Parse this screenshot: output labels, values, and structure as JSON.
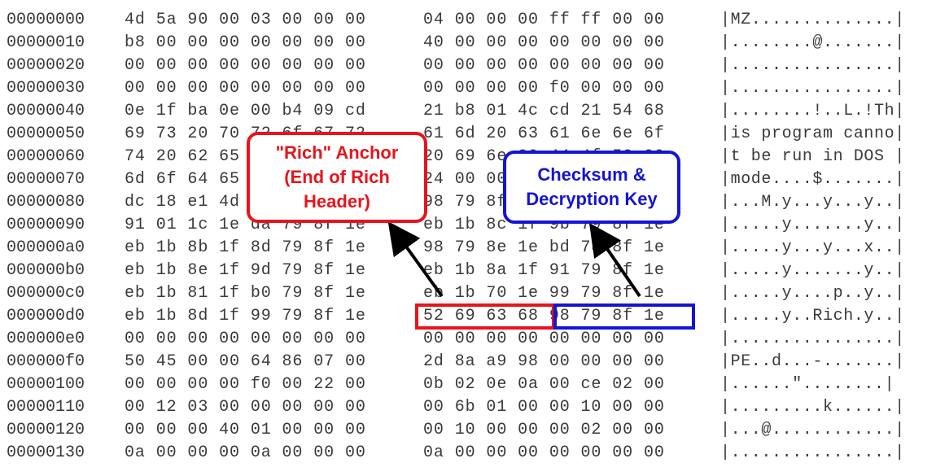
{
  "rows": [
    {
      "offset": "00000000",
      "hex1": "4d 5a 90 00 03 00 00 00",
      "hex2": "04 00 00 00 ff ff 00 00",
      "ascii": "|MZ..............|"
    },
    {
      "offset": "00000010",
      "hex1": "b8 00 00 00 00 00 00 00",
      "hex2": "40 00 00 00 00 00 00 00",
      "ascii": "|........@.......|"
    },
    {
      "offset": "00000020",
      "hex1": "00 00 00 00 00 00 00 00",
      "hex2": "00 00 00 00 00 00 00 00",
      "ascii": "|................|"
    },
    {
      "offset": "00000030",
      "hex1": "00 00 00 00 00 00 00 00",
      "hex2": "00 00 00 00 f0 00 00 00",
      "ascii": "|................|"
    },
    {
      "offset": "00000040",
      "hex1": "0e 1f ba 0e 00 b4 09 cd",
      "hex2": "21 b8 01 4c cd 21 54 68",
      "ascii": "|........!..L.!Th|"
    },
    {
      "offset": "00000050",
      "hex1": "69 73 20 70 72 6f 67 72",
      "hex2": "61 6d 20 63 61 6e 6e 6f",
      "ascii": "|is program canno|"
    },
    {
      "offset": "00000060",
      "hex1": "74 20 62 65 20 72 75 6e",
      "hex2": "20 69 6e 20 44 4f 53 20",
      "ascii": "|t be run in DOS |"
    },
    {
      "offset": "00000070",
      "hex1": "6d 6f 64 65 2e 0d 0d 0a",
      "hex2": "24 00 00 00 00 00 00 00",
      "ascii": "|mode....$.......|"
    },
    {
      "offset": "00000080",
      "hex1": "dc 18 e1 4d 98 79 8f 1e",
      "hex2": "98 79 8f 1e 98 79 8f 1e",
      "ascii": "|...M.y...y...y..|"
    },
    {
      "offset": "00000090",
      "hex1": "91 01 1c 1e da 79 8f 1e",
      "hex2": "eb 1b 8c 1f 9b 79 8f 1e",
      "ascii": "|.....y.......y..|"
    },
    {
      "offset": "000000a0",
      "hex1": "eb 1b 8b 1f 8d 79 8f 1e",
      "hex2": "98 79 8e 1e bd 78 8f 1e",
      "ascii": "|.....y...y...x..|"
    },
    {
      "offset": "000000b0",
      "hex1": "eb 1b 8e 1f 9d 79 8f 1e",
      "hex2": "eb 1b 8a 1f 91 79 8f 1e",
      "ascii": "|.....y.......y..|"
    },
    {
      "offset": "000000c0",
      "hex1": "eb 1b 81 1f b0 79 8f 1e",
      "hex2": "eb 1b 70 1e 99 79 8f 1e",
      "ascii": "|.....y....p..y..|"
    },
    {
      "offset": "000000d0",
      "hex1": "eb 1b 8d 1f 99 79 8f 1e",
      "hex2": "52 69 63 68 98 79 8f 1e",
      "ascii": "|.....y..Rich.y..|"
    },
    {
      "offset": "000000e0",
      "hex1": "00 00 00 00 00 00 00 00",
      "hex2": "00 00 00 00 00 00 00 00",
      "ascii": "|................|"
    },
    {
      "offset": "000000f0",
      "hex1": "50 45 00 00 64 86 07 00",
      "hex2": "2d 8a a9 98 00 00 00 00",
      "ascii": "|PE..d...-.......|"
    },
    {
      "offset": "00000100",
      "hex1": "00 00 00 00 f0 00 22 00",
      "hex2": "0b 02 0e 0a 00 ce 02 00",
      "ascii": "|......\"........|"
    },
    {
      "offset": "00000110",
      "hex1": "00 12 03 00 00 00 00 00",
      "hex2": "00 6b 01 00 00 10 00 00",
      "ascii": "|.........k......|"
    },
    {
      "offset": "00000120",
      "hex1": "00 00 00 40 01 00 00 00",
      "hex2": "00 10 00 00 00 02 00 00",
      "ascii": "|...@............|"
    },
    {
      "offset": "00000130",
      "hex1": "0a 00 00 00 0a 00 00 00",
      "hex2": "0a 00 00 00 00 00 00 00",
      "ascii": "|................|"
    }
  ],
  "callouts": {
    "rich_anchor": {
      "line1": "\"Rich\" Anchor",
      "line2": "(End of Rich",
      "line3": "Header)",
      "color": "#e8141b"
    },
    "checksum": {
      "line1": "Checksum &",
      "line2": "Decryption Key",
      "color": "#1414d6"
    }
  }
}
